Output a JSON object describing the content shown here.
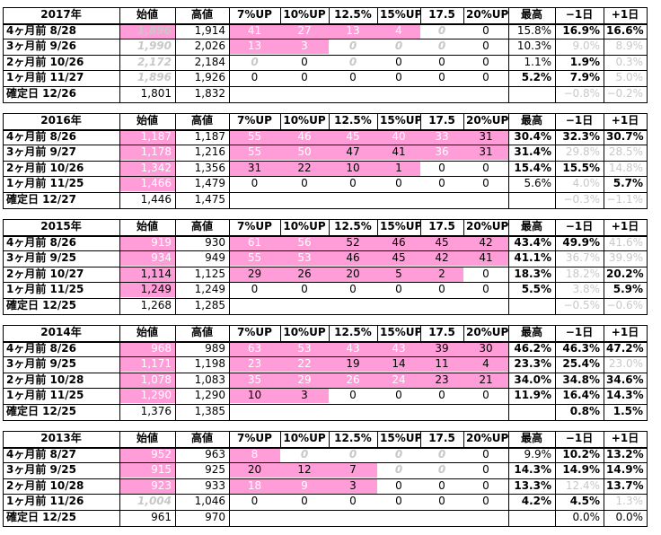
{
  "columns": [
    "始値",
    "高値",
    "7%UP",
    "10%UP",
    "12.5%",
    "15%UP",
    "17.5",
    "20%UP",
    "最高",
    "−1日",
    "+1日"
  ],
  "blocks": [
    {
      "year": "2017年",
      "rows": [
        {
          "label": "4ヶ月前  8/28",
          "open": "1,896",
          "high": "1,914",
          "c7": "41",
          "c10": "27",
          "c125": "13",
          "c15": "4",
          "c175": "0",
          "c20": "0",
          "max": "15.8%",
          "m1": "16.9%",
          "p1": "16.6%"
        },
        {
          "label": "3ヶ月前  9/26",
          "open": "1,990",
          "high": "2,026",
          "c7": "13",
          "c10": "3",
          "c125": "0",
          "c15": "0",
          "c175": "0",
          "c20": "0",
          "max": "10.3%",
          "m1": "9.0%",
          "p1": "8.9%"
        },
        {
          "label": "2ヶ月前  10/26",
          "open": "2,172",
          "high": "2,184",
          "c7": "0",
          "c10": "0",
          "c125": "0",
          "c15": "0",
          "c175": "0",
          "c20": "0",
          "max": "1.1%",
          "m1": "1.9%",
          "p1": "0.3%"
        },
        {
          "label": "1ヶ月前  11/27",
          "open": "1,896",
          "high": "1,926",
          "c7": "0",
          "c10": "0",
          "c125": "0",
          "c15": "0",
          "c175": "0",
          "c20": "0",
          "max": "5.2%",
          "m1": "7.9%",
          "p1": "5.0%"
        },
        {
          "label": "確定日  12/26",
          "open": "1,801",
          "high": "1,832",
          "c7": "",
          "c10": "",
          "c125": "",
          "c15": "",
          "c175": "",
          "c20": "",
          "max": "",
          "m1": "−0.8%",
          "p1": "−0.2%"
        }
      ]
    },
    {
      "year": "2016年",
      "rows": [
        {
          "label": "4ヶ月前  8/26",
          "open": "1,187",
          "high": "1,187",
          "c7": "55",
          "c10": "46",
          "c125": "45",
          "c15": "40",
          "c175": "33",
          "c20": "31",
          "max": "30.4%",
          "m1": "32.3%",
          "p1": "30.7%"
        },
        {
          "label": "3ヶ月前  9/27",
          "open": "1,178",
          "high": "1,216",
          "c7": "55",
          "c10": "50",
          "c125": "47",
          "c15": "41",
          "c175": "36",
          "c20": "31",
          "max": "31.4%",
          "m1": "29.8%",
          "p1": "28.5%"
        },
        {
          "label": "2ヶ月前  10/26",
          "open": "1,342",
          "high": "1,356",
          "c7": "31",
          "c10": "22",
          "c125": "10",
          "c15": "1",
          "c175": "0",
          "c20": "0",
          "max": "15.4%",
          "m1": "15.5%",
          "p1": "14.8%"
        },
        {
          "label": "1ヶ月前  11/25",
          "open": "1,466",
          "high": "1,479",
          "c7": "0",
          "c10": "0",
          "c125": "0",
          "c15": "0",
          "c175": "0",
          "c20": "0",
          "max": "5.6%",
          "m1": "4.0%",
          "p1": "5.7%"
        },
        {
          "label": "確定日  12/27",
          "open": "1,446",
          "high": "1,475",
          "c7": "",
          "c10": "",
          "c125": "",
          "c15": "",
          "c175": "",
          "c20": "",
          "max": "",
          "m1": "−0.3%",
          "p1": "−1.1%"
        }
      ]
    },
    {
      "year": "2015年",
      "rows": [
        {
          "label": "4ヶ月前  8/26",
          "open": "919",
          "high": "930",
          "c7": "61",
          "c10": "56",
          "c125": "52",
          "c15": "46",
          "c175": "45",
          "c20": "42",
          "max": "43.4%",
          "m1": "49.9%",
          "p1": "41.6%"
        },
        {
          "label": "3ヶ月前  9/25",
          "open": "934",
          "high": "949",
          "c7": "55",
          "c10": "53",
          "c125": "46",
          "c15": "45",
          "c175": "42",
          "c20": "41",
          "max": "41.1%",
          "m1": "36.7%",
          "p1": "39.9%"
        },
        {
          "label": "2ヶ月前  10/27",
          "open": "1,114",
          "high": "1,125",
          "c7": "29",
          "c10": "26",
          "c125": "20",
          "c15": "5",
          "c175": "2",
          "c20": "0",
          "max": "18.3%",
          "m1": "18.2%",
          "p1": "20.2%"
        },
        {
          "label": "1ヶ月前  11/25",
          "open": "1,249",
          "high": "1,249",
          "c7": "0",
          "c10": "0",
          "c125": "0",
          "c15": "0",
          "c175": "0",
          "c20": "0",
          "max": "5.5%",
          "m1": "3.8%",
          "p1": "5.9%"
        },
        {
          "label": "確定日  12/25",
          "open": "1,268",
          "high": "1,285",
          "c7": "",
          "c10": "",
          "c125": "",
          "c15": "",
          "c175": "",
          "c20": "",
          "max": "",
          "m1": "−0.5%",
          "p1": "−0.6%"
        }
      ]
    },
    {
      "year": "2014年",
      "rows": [
        {
          "label": "4ヶ月前  8/26",
          "open": "968",
          "high": "989",
          "c7": "63",
          "c10": "53",
          "c125": "43",
          "c15": "43",
          "c175": "39",
          "c20": "30",
          "max": "46.2%",
          "m1": "46.3%",
          "p1": "47.2%"
        },
        {
          "label": "3ヶ月前  9/25",
          "open": "1,171",
          "high": "1,198",
          "c7": "23",
          "c10": "22",
          "c125": "19",
          "c15": "14",
          "c175": "11",
          "c20": "4",
          "max": "23.3%",
          "m1": "25.4%",
          "p1": "23.0%"
        },
        {
          "label": "2ヶ月前  10/28",
          "open": "1,078",
          "high": "1,083",
          "c7": "35",
          "c10": "29",
          "c125": "26",
          "c15": "24",
          "c175": "23",
          "c20": "21",
          "max": "34.0%",
          "m1": "34.8%",
          "p1": "34.6%"
        },
        {
          "label": "1ヶ月前  11/25",
          "open": "1,290",
          "high": "1,290",
          "c7": "10",
          "c10": "3",
          "c125": "0",
          "c15": "0",
          "c175": "0",
          "c20": "0",
          "max": "11.9%",
          "m1": "16.4%",
          "p1": "14.3%"
        },
        {
          "label": "確定日  12/25",
          "open": "1,376",
          "high": "1,385",
          "c7": "",
          "c10": "",
          "c125": "",
          "c15": "",
          "c175": "",
          "c20": "",
          "max": "",
          "m1": "0.8%",
          "p1": "1.5%"
        }
      ]
    },
    {
      "year": "2013年",
      "rows": [
        {
          "label": "4ヶ月前  8/27",
          "open": "952",
          "high": "963",
          "c7": "8",
          "c10": "0",
          "c125": "0",
          "c15": "0",
          "c175": "0",
          "c20": "0",
          "max": "9.9%",
          "m1": "10.2%",
          "p1": "13.2%"
        },
        {
          "label": "3ヶ月前  9/25",
          "open": "915",
          "high": "925",
          "c7": "20",
          "c10": "12",
          "c125": "7",
          "c15": "0",
          "c175": "0",
          "c20": "0",
          "max": "14.3%",
          "m1": "14.9%",
          "p1": "14.9%"
        },
        {
          "label": "2ヶ月前  10/28",
          "open": "923",
          "high": "933",
          "c7": "18",
          "c10": "9",
          "c125": "3",
          "c15": "0",
          "c175": "0",
          "c20": "0",
          "max": "13.3%",
          "m1": "12.4%",
          "p1": "13.7%"
        },
        {
          "label": "1ヶ月前  11/26",
          "open": "1,004",
          "high": "1,046",
          "c7": "0",
          "c10": "0",
          "c125": "0",
          "c15": "0",
          "c175": "0",
          "c20": "0",
          "max": "4.2%",
          "m1": "4.5%",
          "p1": "1.3%"
        },
        {
          "label": "確定日  12/25",
          "open": "961",
          "high": "970",
          "c7": "",
          "c10": "",
          "c125": "",
          "c15": "",
          "c175": "",
          "c20": "",
          "max": "",
          "m1": "0.0%",
          "p1": "0.0%"
        }
      ]
    }
  ]
}
